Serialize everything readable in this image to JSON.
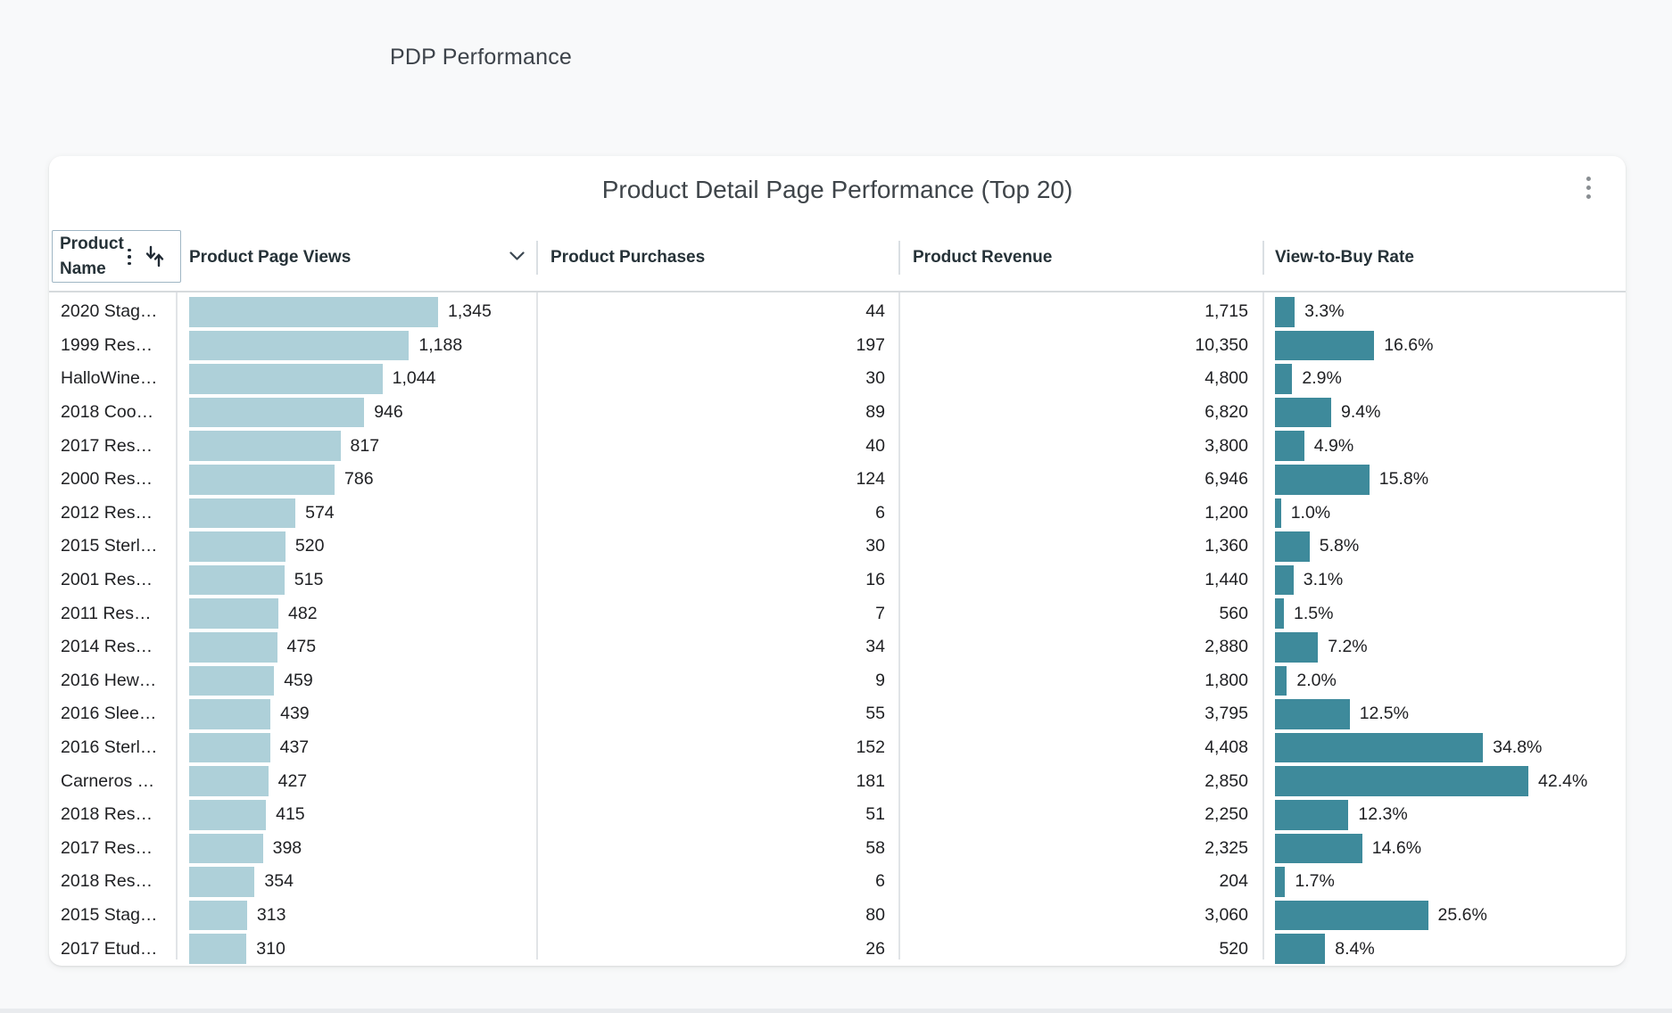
{
  "page": {
    "title": "PDP Performance"
  },
  "card": {
    "title": "Product Detail Page Performance (Top 20)",
    "menu_icon": "kebab-menu"
  },
  "table": {
    "headers": {
      "name": "Product Name",
      "views": "Product Page Views",
      "purchases": "Product Purchases",
      "revenue": "Product Revenue",
      "rate": "View-to-Buy Rate"
    },
    "sort": {
      "column": "Product Page Views",
      "direction": "descending",
      "indicator_icon": "chevron-down",
      "name_cell_icons": [
        "kebab-icon",
        "sort-arrows-icon"
      ]
    },
    "max_views_value": 1345,
    "max_rate_value": 42.4,
    "rows": [
      {
        "name": "2020 Stag…",
        "views": "1,345",
        "views_value": 1345,
        "purchases": "44",
        "revenue": "1,715",
        "rate": "3.3%",
        "rate_value": 3.3
      },
      {
        "name": "1999 Res…",
        "views": "1,188",
        "views_value": 1188,
        "purchases": "197",
        "revenue": "10,350",
        "rate": "16.6%",
        "rate_value": 16.6
      },
      {
        "name": "HalloWine…",
        "views": "1,044",
        "views_value": 1044,
        "purchases": "30",
        "revenue": "4,800",
        "rate": "2.9%",
        "rate_value": 2.9
      },
      {
        "name": "2018 Coo…",
        "views": "946",
        "views_value": 946,
        "purchases": "89",
        "revenue": "6,820",
        "rate": "9.4%",
        "rate_value": 9.4
      },
      {
        "name": "2017 Res…",
        "views": "817",
        "views_value": 817,
        "purchases": "40",
        "revenue": "3,800",
        "rate": "4.9%",
        "rate_value": 4.9
      },
      {
        "name": "2000 Res…",
        "views": "786",
        "views_value": 786,
        "purchases": "124",
        "revenue": "6,946",
        "rate": "15.8%",
        "rate_value": 15.8
      },
      {
        "name": "2012 Res…",
        "views": "574",
        "views_value": 574,
        "purchases": "6",
        "revenue": "1,200",
        "rate": "1.0%",
        "rate_value": 1.0
      },
      {
        "name": "2015 Sterl…",
        "views": "520",
        "views_value": 520,
        "purchases": "30",
        "revenue": "1,360",
        "rate": "5.8%",
        "rate_value": 5.8
      },
      {
        "name": "2001 Res…",
        "views": "515",
        "views_value": 515,
        "purchases": "16",
        "revenue": "1,440",
        "rate": "3.1%",
        "rate_value": 3.1
      },
      {
        "name": "2011 Res…",
        "views": "482",
        "views_value": 482,
        "purchases": "7",
        "revenue": "560",
        "rate": "1.5%",
        "rate_value": 1.5
      },
      {
        "name": "2014 Res…",
        "views": "475",
        "views_value": 475,
        "purchases": "34",
        "revenue": "2,880",
        "rate": "7.2%",
        "rate_value": 7.2
      },
      {
        "name": "2016 Hew…",
        "views": "459",
        "views_value": 459,
        "purchases": "9",
        "revenue": "1,800",
        "rate": "2.0%",
        "rate_value": 2.0
      },
      {
        "name": "2016 Slee…",
        "views": "439",
        "views_value": 439,
        "purchases": "55",
        "revenue": "3,795",
        "rate": "12.5%",
        "rate_value": 12.5
      },
      {
        "name": "2016 Sterl…",
        "views": "437",
        "views_value": 437,
        "purchases": "152",
        "revenue": "4,408",
        "rate": "34.8%",
        "rate_value": 34.8
      },
      {
        "name": "Carneros …",
        "views": "427",
        "views_value": 427,
        "purchases": "181",
        "revenue": "2,850",
        "rate": "42.4%",
        "rate_value": 42.4
      },
      {
        "name": "2018 Res…",
        "views": "415",
        "views_value": 415,
        "purchases": "51",
        "revenue": "2,250",
        "rate": "12.3%",
        "rate_value": 12.3
      },
      {
        "name": "2017 Res…",
        "views": "398",
        "views_value": 398,
        "purchases": "58",
        "revenue": "2,325",
        "rate": "14.6%",
        "rate_value": 14.6
      },
      {
        "name": "2018 Res…",
        "views": "354",
        "views_value": 354,
        "purchases": "6",
        "revenue": "204",
        "rate": "1.7%",
        "rate_value": 1.7
      },
      {
        "name": "2015 Stag…",
        "views": "313",
        "views_value": 313,
        "purchases": "80",
        "revenue": "3,060",
        "rate": "25.6%",
        "rate_value": 25.6
      },
      {
        "name": "2017 Etud…",
        "views": "310",
        "views_value": 310,
        "purchases": "26",
        "revenue": "520",
        "rate": "8.4%",
        "rate_value": 8.4
      }
    ]
  },
  "colors": {
    "page_bg": "#f8f9fa",
    "card_bg": "#ffffff",
    "views_bar": "#aed0d9",
    "rate_bar": "#3e8a9b"
  },
  "chart_data": {
    "type": "table",
    "title": "Product Detail Page Performance (Top 20)",
    "columns": [
      "Product Name",
      "Product Page Views",
      "Product Purchases",
      "Product Revenue",
      "View-to-Buy Rate (%)"
    ],
    "bar_columns": [
      "Product Page Views",
      "View-to-Buy Rate (%)"
    ],
    "sort": "Product Page Views descending",
    "rows": [
      [
        "2020 Stag…",
        1345,
        44,
        1715,
        3.3
      ],
      [
        "1999 Res…",
        1188,
        197,
        10350,
        16.6
      ],
      [
        "HalloWine…",
        1044,
        30,
        4800,
        2.9
      ],
      [
        "2018 Coo…",
        946,
        89,
        6820,
        9.4
      ],
      [
        "2017 Res…",
        817,
        40,
        3800,
        4.9
      ],
      [
        "2000 Res…",
        786,
        124,
        6946,
        15.8
      ],
      [
        "2012 Res…",
        574,
        6,
        1200,
        1.0
      ],
      [
        "2015 Sterl…",
        520,
        30,
        1360,
        5.8
      ],
      [
        "2001 Res…",
        515,
        16,
        1440,
        3.1
      ],
      [
        "2011 Res…",
        482,
        7,
        560,
        1.5
      ],
      [
        "2014 Res…",
        475,
        34,
        2880,
        7.2
      ],
      [
        "2016 Hew…",
        459,
        9,
        1800,
        2.0
      ],
      [
        "2016 Slee…",
        439,
        55,
        3795,
        12.5
      ],
      [
        "2016 Sterl…",
        437,
        152,
        4408,
        34.8
      ],
      [
        "Carneros …",
        427,
        181,
        2850,
        42.4
      ],
      [
        "2018 Res…",
        415,
        51,
        2250,
        12.3
      ],
      [
        "2017 Res…",
        398,
        58,
        2325,
        14.6
      ],
      [
        "2018 Res…",
        354,
        6,
        204,
        1.7
      ],
      [
        "2015 Stag…",
        313,
        80,
        3060,
        25.6
      ],
      [
        "2017 Etud…",
        310,
        26,
        520,
        8.4
      ]
    ]
  }
}
